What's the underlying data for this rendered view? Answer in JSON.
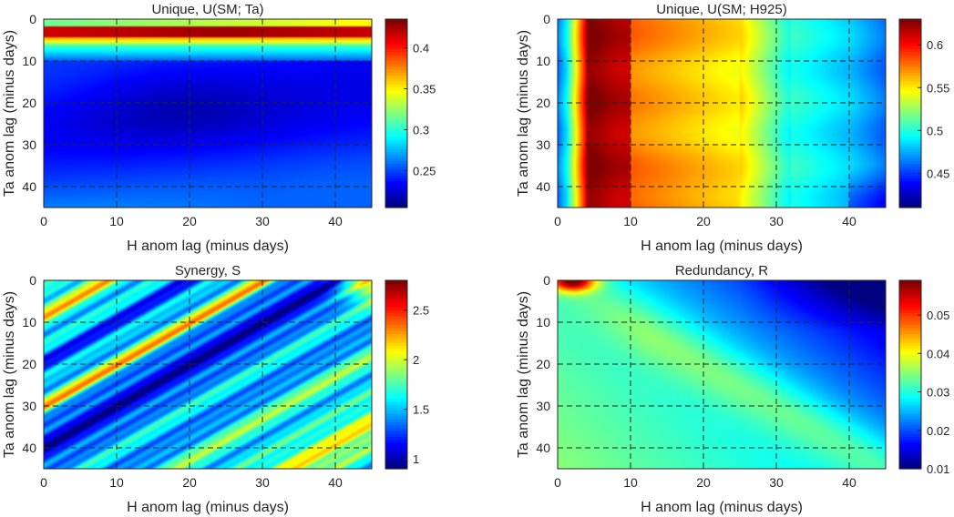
{
  "chart_data": [
    {
      "type": "heatmap",
      "title": "Unique, U(SM; Ta)",
      "xlabel": "H anom lag (minus days)",
      "ylabel": "Ta anom lag (minus days)",
      "xlim": [
        0,
        45
      ],
      "ylim": [
        45,
        0
      ],
      "xticks": [
        0,
        10,
        20,
        30,
        40
      ],
      "yticks": [
        0,
        10,
        20,
        30,
        40
      ],
      "colorbar_ticks": [
        0.25,
        0.3,
        0.35,
        0.4
      ],
      "colorbar_range": [
        0.205,
        0.435
      ],
      "colormap": "jet",
      "grid": "dashed",
      "pattern_samples": [
        {
          "x": 0,
          "y": 0,
          "value": 0.33
        },
        {
          "x": 20,
          "y": 2,
          "value": 0.43
        },
        {
          "x": 20,
          "y": 6,
          "value": 0.27
        },
        {
          "x": 15,
          "y": 20,
          "value": 0.21
        },
        {
          "x": 10,
          "y": 30,
          "value": 0.24
        },
        {
          "x": 40,
          "y": 42,
          "value": 0.26
        }
      ]
    },
    {
      "type": "heatmap",
      "title": "Unique, U(SM; H925)",
      "xlabel": "H anom lag (minus days)",
      "ylabel": "Ta anom lag (minus days)",
      "xlim": [
        0,
        45
      ],
      "ylim": [
        45,
        0
      ],
      "xticks": [
        0,
        10,
        20,
        30,
        40
      ],
      "yticks": [
        0,
        10,
        20,
        30,
        40
      ],
      "colorbar_ticks": [
        0.45,
        0.5,
        0.55,
        0.6
      ],
      "colorbar_range": [
        0.41,
        0.63
      ],
      "colormap": "jet",
      "grid": "dashed",
      "pattern_samples": [
        {
          "x": 0,
          "y": 20,
          "value": 0.47
        },
        {
          "x": 7,
          "y": 20,
          "value": 0.63
        },
        {
          "x": 20,
          "y": 20,
          "value": 0.57
        },
        {
          "x": 32,
          "y": 20,
          "value": 0.5
        },
        {
          "x": 45,
          "y": 45,
          "value": 0.42
        }
      ]
    },
    {
      "type": "heatmap",
      "title": "Synergy, S",
      "xlabel": "H anom lag (minus days)",
      "ylabel": "Ta anom lag (minus days)",
      "xlim": [
        0,
        45
      ],
      "ylim": [
        45,
        0
      ],
      "xticks": [
        0,
        10,
        20,
        30,
        40
      ],
      "yticks": [
        0,
        10,
        20,
        30,
        40
      ],
      "colorbar_ticks": [
        1,
        1.5,
        2,
        2.5
      ],
      "colorbar_range": [
        0.9,
        2.8
      ],
      "colormap": "jet",
      "grid": "dashed",
      "pattern": "diagonal bands along H lag + Ta lag; minimum near diagonal 40, ridges near 30 and 60"
    },
    {
      "type": "heatmap",
      "title": "Redundancy, R",
      "xlabel": "H anom lag (minus days)",
      "ylabel": "Ta anom lag (minus days)",
      "xlim": [
        0,
        45
      ],
      "ylim": [
        45,
        0
      ],
      "xticks": [
        0,
        10,
        20,
        30,
        40
      ],
      "yticks": [
        0,
        10,
        20,
        30,
        40
      ],
      "colorbar_ticks": [
        0.01,
        0.02,
        0.03,
        0.04,
        0.05
      ],
      "colorbar_range": [
        0.01,
        0.059
      ],
      "colormap": "jet",
      "grid": "dashed",
      "pattern_samples": [
        {
          "x": 2,
          "y": 1,
          "value": 0.057
        },
        {
          "x": 10,
          "y": 10,
          "value": 0.032
        },
        {
          "x": 40,
          "y": 5,
          "value": 0.012
        },
        {
          "x": 30,
          "y": 30,
          "value": 0.035
        },
        {
          "x": 0,
          "y": 40,
          "value": 0.026
        }
      ]
    }
  ]
}
